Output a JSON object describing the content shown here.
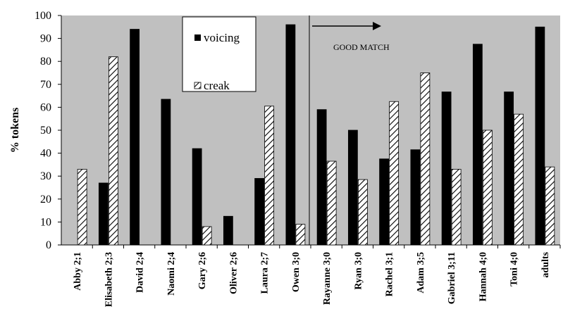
{
  "chart_data": {
    "type": "bar",
    "ylabel": "% tokens",
    "ylim": [
      0,
      100
    ],
    "yticks": [
      0,
      10,
      20,
      30,
      40,
      50,
      60,
      70,
      80,
      90,
      100
    ],
    "plot_background": "#c0c0c0",
    "grid": false,
    "legend_placement": "top-left-center",
    "categories": [
      "Abby 2;1",
      "Elisabeth 2;3",
      "David 2;4",
      "Naomi 2;4",
      "Gary 2;6",
      "Oliver 2;6",
      "Laura 2;7",
      "Owen 3;0",
      "Rayanne 3;0",
      "Ryan 3;0",
      "Rachel 3;1",
      "Adam 3;5",
      "Gabriel 3;11",
      "Hannah 4;0",
      "Toni 4;0",
      "adults"
    ],
    "series": [
      {
        "name": "voicing",
        "fill": "solid-black",
        "values": [
          0,
          27,
          94,
          63.5,
          42,
          12.5,
          29,
          96,
          59,
          50,
          37.5,
          41.5,
          66.7,
          87.5,
          66.7,
          95
        ]
      },
      {
        "name": "creak",
        "fill": "diagonal-hatch",
        "values": [
          33,
          82,
          0,
          0,
          8,
          0,
          60.5,
          9,
          36.5,
          28.5,
          62.5,
          75,
          33,
          50,
          57,
          34
        ]
      }
    ],
    "annotations": [
      {
        "text": "GOOD MATCH",
        "arrow": "right"
      }
    ],
    "divider_after_category": "Owen 3;0"
  }
}
